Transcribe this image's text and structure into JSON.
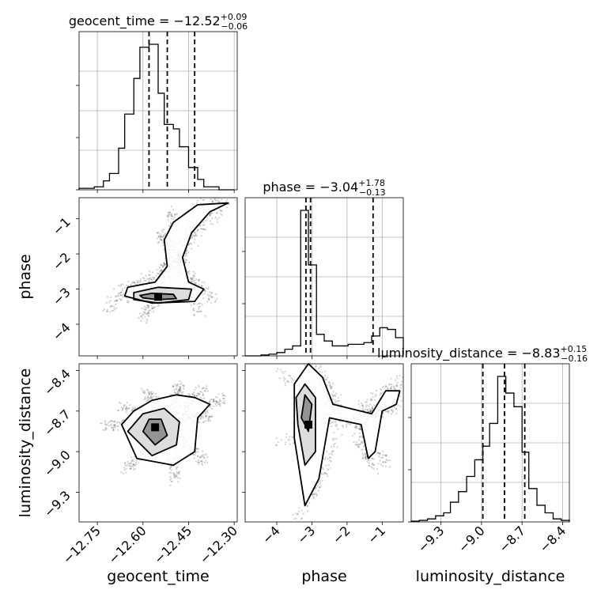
{
  "chart_data": {
    "type": "corner",
    "parameters": [
      "geocent_time",
      "phase",
      "luminosity_distance"
    ],
    "titles": {
      "geocent_time": {
        "name": "geocent_time",
        "median": "−12.52",
        "plus": "+0.09",
        "minus": "−0.06"
      },
      "phase": {
        "name": "phase",
        "median": "−3.04",
        "plus": "+1.78",
        "minus": "−0.13"
      },
      "luminosity_distance": {
        "name": "luminosity_distance",
        "median": "−8.83",
        "plus": "+0.15",
        "minus": "−0.16"
      }
    },
    "axis_labels": {
      "x": [
        "geocent_time",
        "phase",
        "luminosity_distance"
      ],
      "y": [
        "phase",
        "luminosity_distance"
      ]
    },
    "ranges": {
      "geocent_time": [
        -12.81,
        -12.29
      ],
      "phase": [
        -4.9,
        -0.4
      ],
      "luminosity_distance": [
        -9.52,
        -8.35
      ]
    },
    "ticks": {
      "geocent_time": [
        -12.75,
        -12.6,
        -12.45,
        -12.3
      ],
      "geocent_time_labels": [
        "−12.75",
        "−12.60",
        "−12.45",
        "−12.30"
      ],
      "phase": [
        -4,
        -3,
        -2,
        -1
      ],
      "phase_labels": [
        "−4",
        "−3",
        "−2",
        "−1"
      ],
      "luminosity_distance": [
        -9.3,
        -9.0,
        -8.7,
        -8.4
      ],
      "luminosity_distance_labels": [
        "−9.3",
        "−9.0",
        "−8.7",
        "−8.4"
      ]
    },
    "quantile_lines": {
      "geocent_time": [
        -12.58,
        -12.52,
        -12.43
      ],
      "phase": [
        -3.17,
        -3.04,
        -1.26
      ],
      "luminosity_distance": [
        -8.99,
        -8.83,
        -8.68
      ]
    },
    "histograms": {
      "geocent_time": {
        "edges": [
          -12.81,
          -12.78,
          -12.76,
          -12.73,
          -12.71,
          -12.68,
          -12.66,
          -12.63,
          -12.61,
          -12.58,
          -12.55,
          -12.53,
          -12.5,
          -12.48,
          -12.45,
          -12.42,
          -12.4,
          -12.37,
          -12.35,
          -12.32,
          -12.3
        ],
        "counts": [
          0.01,
          0.01,
          0.02,
          0.06,
          0.11,
          0.28,
          0.51,
          0.75,
          0.96,
          0.98,
          0.65,
          0.44,
          0.41,
          0.29,
          0.15,
          0.07,
          0.02,
          0.02,
          0,
          0
        ]
      },
      "phase": {
        "edges": [
          -4.9,
          -4.67,
          -4.45,
          -4.22,
          -4.0,
          -3.77,
          -3.55,
          -3.32,
          -3.1,
          -2.87,
          -2.65,
          -2.42,
          -2.2,
          -1.97,
          -1.75,
          -1.52,
          -1.3,
          -1.07,
          -0.85,
          -0.62,
          -0.4
        ],
        "counts": [
          0,
          0,
          0.005,
          0.01,
          0.02,
          0.04,
          0.06,
          0.88,
          0.55,
          0.13,
          0.09,
          0.06,
          0.06,
          0.07,
          0.07,
          0.08,
          0.12,
          0.17,
          0.16,
          0.11
        ]
      },
      "luminosity_distance": {
        "edges": [
          -9.52,
          -9.46,
          -9.4,
          -9.34,
          -9.28,
          -9.23,
          -9.17,
          -9.11,
          -9.05,
          -8.99,
          -8.94,
          -8.88,
          -8.82,
          -8.76,
          -8.7,
          -8.65,
          -8.59,
          -8.53,
          -8.47,
          -8.41,
          -8.35
        ],
        "counts": [
          0.005,
          0.01,
          0.02,
          0.04,
          0.06,
          0.13,
          0.2,
          0.3,
          0.41,
          0.5,
          0.65,
          0.96,
          0.85,
          0.76,
          0.46,
          0.22,
          0.11,
          0.06,
          0.02,
          0.01
        ]
      }
    },
    "joint_2d": {
      "geocent_time_vs_phase": {
        "x_param": "geocent_time",
        "y_param": "phase",
        "contours": [
          [
            [
              -12.6,
              -3.25
            ],
            [
              -12.55,
              -3.3
            ],
            [
              -12.49,
              -3.27
            ],
            [
              -12.5,
              -3.15
            ],
            [
              -12.57,
              -3.12
            ],
            [
              -12.61,
              -3.18
            ]
          ],
          [
            [
              -12.63,
              -3.3
            ],
            [
              -12.55,
              -3.4
            ],
            [
              -12.45,
              -3.3
            ],
            [
              -12.44,
              -3.0
            ],
            [
              -12.55,
              -2.95
            ],
            [
              -12.63,
              -3.1
            ]
          ],
          [
            [
              -12.66,
              -3.2
            ],
            [
              -12.57,
              -3.4
            ],
            [
              -12.43,
              -3.35
            ],
            [
              -12.4,
              -3.0
            ],
            [
              -12.45,
              -2.8
            ],
            [
              -12.47,
              -2.1
            ],
            [
              -12.44,
              -1.4
            ],
            [
              -12.38,
              -0.8
            ],
            [
              -12.32,
              -0.55
            ],
            [
              -12.42,
              -0.6
            ],
            [
              -12.5,
              -1.1
            ],
            [
              -12.53,
              -1.6
            ],
            [
              -12.52,
              -2.35
            ],
            [
              -12.56,
              -2.8
            ],
            [
              -12.65,
              -2.95
            ]
          ]
        ],
        "peak": [
          -12.55,
          -3.22
        ]
      },
      "geocent_time_vs_luminosity_distance": {
        "x_param": "geocent_time",
        "y_param": "luminosity_distance",
        "contours": [
          [
            [
              -12.6,
              -8.85
            ],
            [
              -12.56,
              -8.95
            ],
            [
              -12.52,
              -8.88
            ],
            [
              -12.54,
              -8.76
            ],
            [
              -12.58,
              -8.76
            ]
          ],
          [
            [
              -12.65,
              -8.85
            ],
            [
              -12.57,
              -9.03
            ],
            [
              -12.49,
              -8.95
            ],
            [
              -12.48,
              -8.78
            ],
            [
              -12.53,
              -8.68
            ],
            [
              -12.6,
              -8.72
            ]
          ],
          [
            [
              -12.67,
              -8.8
            ],
            [
              -12.62,
              -9.05
            ],
            [
              -12.5,
              -9.1
            ],
            [
              -12.43,
              -9.0
            ],
            [
              -12.42,
              -8.75
            ],
            [
              -12.38,
              -8.65
            ],
            [
              -12.43,
              -8.6
            ],
            [
              -12.49,
              -8.58
            ],
            [
              -12.57,
              -8.62
            ],
            [
              -12.63,
              -8.7
            ]
          ]
        ],
        "peak": [
          -12.56,
          -8.82
        ]
      },
      "phase_vs_luminosity_distance": {
        "x_param": "phase",
        "y_param": "luminosity_distance",
        "contours": [
          [
            [
              -3.3,
              -8.75
            ],
            [
              -3.1,
              -8.85
            ],
            [
              -3.0,
              -8.65
            ],
            [
              -3.2,
              -8.58
            ]
          ],
          [
            [
              -3.4,
              -8.8
            ],
            [
              -3.2,
              -9.1
            ],
            [
              -2.9,
              -9.0
            ],
            [
              -2.9,
              -8.6
            ],
            [
              -3.2,
              -8.5
            ],
            [
              -3.45,
              -8.6
            ]
          ],
          [
            [
              -3.5,
              -8.9
            ],
            [
              -3.2,
              -9.4
            ],
            [
              -2.8,
              -9.2
            ],
            [
              -2.5,
              -8.75
            ],
            [
              -1.6,
              -8.8
            ],
            [
              -1.4,
              -9.05
            ],
            [
              -1.2,
              -9.0
            ],
            [
              -1.0,
              -8.7
            ],
            [
              -0.6,
              -8.65
            ],
            [
              -0.5,
              -8.55
            ],
            [
              -0.9,
              -8.55
            ],
            [
              -1.3,
              -8.72
            ],
            [
              -2.4,
              -8.65
            ],
            [
              -2.7,
              -8.45
            ],
            [
              -3.1,
              -8.35
            ],
            [
              -3.5,
              -8.5
            ]
          ]
        ],
        "peak": [
          -3.1,
          -8.8
        ]
      }
    },
    "grid": true
  }
}
